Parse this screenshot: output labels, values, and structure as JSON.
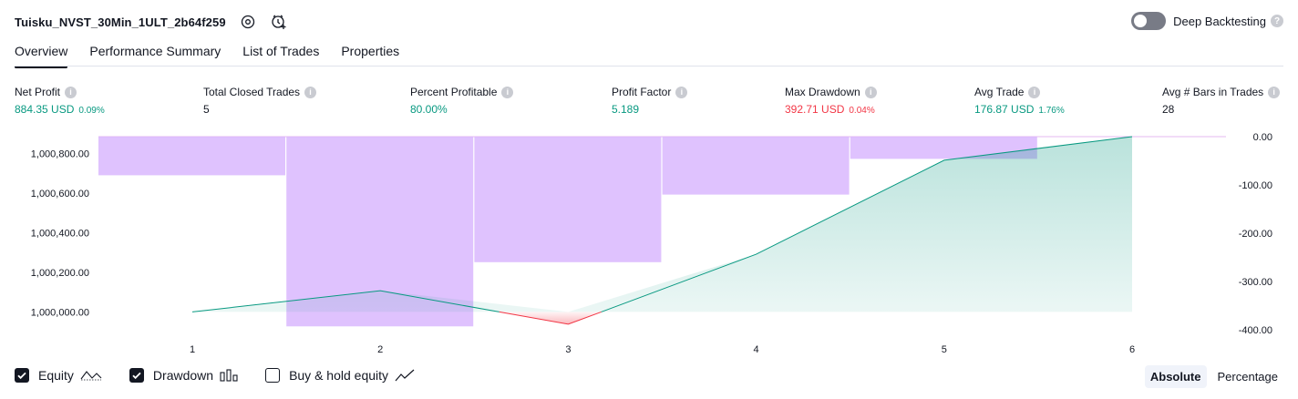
{
  "header": {
    "strategy_name": "Tuisku_NVST_30Min_1ULT_2b64f259",
    "deep_backtesting_label": "Deep Backtesting"
  },
  "tabs": [
    {
      "label": "Overview",
      "active": true
    },
    {
      "label": "Performance Summary",
      "active": false
    },
    {
      "label": "List of Trades",
      "active": false
    },
    {
      "label": "Properties",
      "active": false
    }
  ],
  "metrics": {
    "net_profit": {
      "label": "Net Profit",
      "value": "884.35 USD",
      "pct": "0.09%",
      "color": "#089981"
    },
    "total_closed_trades": {
      "label": "Total Closed Trades",
      "value": "5"
    },
    "percent_profitable": {
      "label": "Percent Profitable",
      "value": "80.00%",
      "color": "#089981"
    },
    "profit_factor": {
      "label": "Profit Factor",
      "value": "5.189",
      "color": "#089981"
    },
    "max_drawdown": {
      "label": "Max Drawdown",
      "value": "392.71 USD",
      "pct": "0.04%",
      "color": "#f23645"
    },
    "avg_trade": {
      "label": "Avg Trade",
      "value": "176.87 USD",
      "pct": "1.76%",
      "color": "#089981"
    },
    "avg_bars": {
      "label": "Avg # Bars in Trades",
      "value": "28"
    }
  },
  "chart_data": {
    "type": "line",
    "x": [
      1,
      2,
      3,
      4,
      5,
      6
    ],
    "x_tick_labels": [
      "1",
      "2",
      "3",
      "4",
      "5",
      "6"
    ],
    "series": [
      {
        "type": "line",
        "axis": "left",
        "values": [
          1000000,
          1000107,
          999938,
          1000291,
          1000765,
          1000884
        ],
        "color": "#089981"
      },
      {
        "type": "bar",
        "axis": "right",
        "values": [
          -80,
          -393,
          -260,
          -120,
          -46,
          0
        ],
        "color": "#d8b4fe"
      }
    ],
    "left_axis": {
      "ticks": [
        "1,000,000.00",
        "1,000,200.00",
        "1,000,400.00",
        "1,000,600.00",
        "1,000,800.00"
      ],
      "tick_values": [
        1000000,
        1000200,
        1000400,
        1000600,
        1000800
      ],
      "range": [
        999910,
        1000884
      ]
    },
    "right_axis": {
      "ticks": [
        "0.00",
        "-100.00",
        "-200.00",
        "-300.00",
        "-400.00"
      ],
      "tick_values": [
        0,
        -100,
        -200,
        -300,
        -400
      ],
      "range": [
        -400,
        0
      ]
    },
    "grid": false
  },
  "legend": {
    "items": [
      {
        "label": "Equity",
        "checked": true
      },
      {
        "label": "Drawdown",
        "checked": true
      },
      {
        "label": "Buy & hold equity",
        "checked": false
      }
    ],
    "modes": [
      {
        "label": "Absolute",
        "active": true
      },
      {
        "label": "Percentage",
        "active": false
      }
    ]
  }
}
